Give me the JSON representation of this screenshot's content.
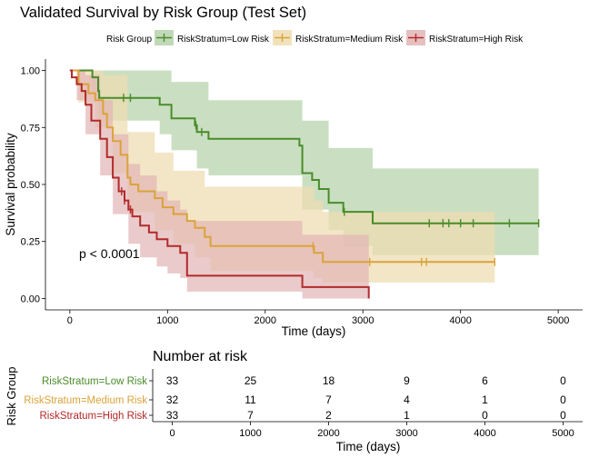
{
  "chart_data": [
    {
      "type": "line",
      "subtype": "kaplan-meier",
      "title": "Validated Survival by Risk Group (Test Set)",
      "legend": {
        "title": "Risk Group",
        "position": "top"
      },
      "xlabel": "Time (days)",
      "ylabel": "Survival probability",
      "xlim": [
        -250,
        5250
      ],
      "ylim": [
        -0.05,
        1.05
      ],
      "xticks": [
        "0",
        "1000",
        "2000",
        "3000",
        "4000",
        "5000"
      ],
      "xtick_values": [
        0,
        1000,
        2000,
        3000,
        4000,
        5000
      ],
      "yticks": [
        "0.00",
        "0.25",
        "0.50",
        "0.75",
        "1.00"
      ],
      "ytick_values": [
        0,
        0.25,
        0.5,
        0.75,
        1.0
      ],
      "annotation": {
        "text": "p < 0.0001",
        "x": 450,
        "y": 0.195
      },
      "grid": false,
      "series": [
        {
          "name": "RiskStratum=Low Risk",
          "color": "#4a8c2a",
          "fill": "#b5d2ab",
          "steps": [
            [
              0,
              1.0
            ],
            [
              230,
              0.97
            ],
            [
              290,
              0.91
            ],
            [
              300,
              0.88
            ],
            [
              920,
              0.85
            ],
            [
              1040,
              0.79
            ],
            [
              1280,
              0.76
            ],
            [
              1300,
              0.73
            ],
            [
              1420,
              0.7
            ],
            [
              2350,
              0.67
            ],
            [
              2380,
              0.55
            ],
            [
              2480,
              0.52
            ],
            [
              2550,
              0.48
            ],
            [
              2650,
              0.42
            ],
            [
              2800,
              0.38
            ],
            [
              3100,
              0.33
            ],
            [
              4800,
              0.33
            ]
          ],
          "ci_upper": [
            [
              0,
              1.0
            ],
            [
              230,
              1.0
            ],
            [
              1040,
              0.95
            ],
            [
              1420,
              0.87
            ],
            [
              2380,
              0.78
            ],
            [
              2650,
              0.66
            ],
            [
              3100,
              0.57
            ],
            [
              4800,
              0.57
            ]
          ],
          "ci_lower": [
            [
              0,
              1.0
            ],
            [
              230,
              0.9
            ],
            [
              290,
              0.8
            ],
            [
              300,
              0.78
            ],
            [
              920,
              0.72
            ],
            [
              1040,
              0.65
            ],
            [
              1300,
              0.57
            ],
            [
              1420,
              0.54
            ],
            [
              2380,
              0.39
            ],
            [
              2650,
              0.3
            ],
            [
              2800,
              0.23
            ],
            [
              3100,
              0.19
            ],
            [
              4800,
              0.19
            ]
          ],
          "censor_x": [
            550,
            620,
            1290,
            1350,
            2810,
            3680,
            3820,
            3880,
            4000,
            4130,
            4500,
            4800
          ]
        },
        {
          "name": "RiskStratum=Medium Risk",
          "color": "#dba33a",
          "fill": "#efddb0",
          "steps": [
            [
              0,
              1.0
            ],
            [
              90,
              0.94
            ],
            [
              190,
              0.9
            ],
            [
              260,
              0.87
            ],
            [
              340,
              0.81
            ],
            [
              380,
              0.75
            ],
            [
              440,
              0.69
            ],
            [
              520,
              0.63
            ],
            [
              590,
              0.53
            ],
            [
              620,
              0.5
            ],
            [
              700,
              0.47
            ],
            [
              870,
              0.44
            ],
            [
              950,
              0.4
            ],
            [
              1060,
              0.37
            ],
            [
              1200,
              0.34
            ],
            [
              1280,
              0.31
            ],
            [
              1380,
              0.27
            ],
            [
              1440,
              0.23
            ],
            [
              2500,
              0.2
            ],
            [
              2590,
              0.16
            ],
            [
              4350,
              0.16
            ]
          ],
          "ci_upper": [
            [
              0,
              1.0
            ],
            [
              340,
              0.98
            ],
            [
              590,
              0.73
            ],
            [
              870,
              0.64
            ],
            [
              1060,
              0.56
            ],
            [
              1380,
              0.49
            ],
            [
              2500,
              0.43
            ],
            [
              2590,
              0.38
            ],
            [
              4350,
              0.38
            ]
          ],
          "ci_lower": [
            [
              0,
              1.0
            ],
            [
              90,
              0.86
            ],
            [
              260,
              0.75
            ],
            [
              440,
              0.55
            ],
            [
              590,
              0.38
            ],
            [
              870,
              0.3
            ],
            [
              1060,
              0.24
            ],
            [
              1280,
              0.18
            ],
            [
              1440,
              0.12
            ],
            [
              2500,
              0.09
            ],
            [
              2590,
              0.07
            ],
            [
              4350,
              0.07
            ]
          ],
          "censor_x": [
            2490,
            3070,
            3600,
            3650,
            4350
          ]
        },
        {
          "name": "RiskStratum=High Risk",
          "color": "#b22a2a",
          "fill": "#e2b5b5",
          "steps": [
            [
              0,
              1.0
            ],
            [
              20,
              0.97
            ],
            [
              70,
              0.94
            ],
            [
              120,
              0.91
            ],
            [
              160,
              0.85
            ],
            [
              220,
              0.78
            ],
            [
              310,
              0.7
            ],
            [
              380,
              0.62
            ],
            [
              440,
              0.53
            ],
            [
              500,
              0.47
            ],
            [
              560,
              0.43
            ],
            [
              600,
              0.39
            ],
            [
              640,
              0.36
            ],
            [
              720,
              0.32
            ],
            [
              810,
              0.29
            ],
            [
              890,
              0.26
            ],
            [
              1000,
              0.23
            ],
            [
              1130,
              0.2
            ],
            [
              1200,
              0.1
            ],
            [
              2380,
              0.05
            ],
            [
              3060,
              0.0
            ]
          ],
          "ci_upper": [
            [
              0,
              1.0
            ],
            [
              160,
              0.98
            ],
            [
              310,
              0.87
            ],
            [
              440,
              0.72
            ],
            [
              600,
              0.59
            ],
            [
              720,
              0.54
            ],
            [
              890,
              0.47
            ],
            [
              1000,
              0.43
            ],
            [
              1130,
              0.39
            ],
            [
              1200,
              0.34
            ],
            [
              2380,
              0.28
            ],
            [
              3060,
              0.28
            ]
          ],
          "ci_lower": [
            [
              0,
              1.0
            ],
            [
              70,
              0.87
            ],
            [
              160,
              0.72
            ],
            [
              310,
              0.54
            ],
            [
              440,
              0.37
            ],
            [
              600,
              0.24
            ],
            [
              720,
              0.18
            ],
            [
              890,
              0.14
            ],
            [
              1000,
              0.11
            ],
            [
              1130,
              0.09
            ],
            [
              1200,
              0.03
            ],
            [
              2380,
              0.0
            ],
            [
              3060,
              0.0
            ]
          ],
          "censor_x": [
            530,
            560,
            620
          ]
        }
      ]
    },
    {
      "type": "table",
      "title": "Number at risk",
      "ylabel": "Risk Group",
      "xlabel": "Time (days)",
      "xticks": [
        "0",
        "1000",
        "2000",
        "3000",
        "4000",
        "5000"
      ],
      "xtick_values": [
        0,
        1000,
        2000,
        3000,
        4000,
        5000
      ],
      "rows": [
        {
          "name": "RiskStratum=Low Risk",
          "color": "#4a8c2a",
          "values": [
            "33",
            "25",
            "18",
            "9",
            "6",
            "0"
          ]
        },
        {
          "name": "RiskStratum=Medium Risk",
          "color": "#dba33a",
          "values": [
            "32",
            "11",
            "7",
            "4",
            "1",
            "0"
          ]
        },
        {
          "name": "RiskStratum=High Risk",
          "color": "#b22a2a",
          "values": [
            "33",
            "7",
            "2",
            "1",
            "0",
            "0"
          ]
        }
      ]
    }
  ]
}
